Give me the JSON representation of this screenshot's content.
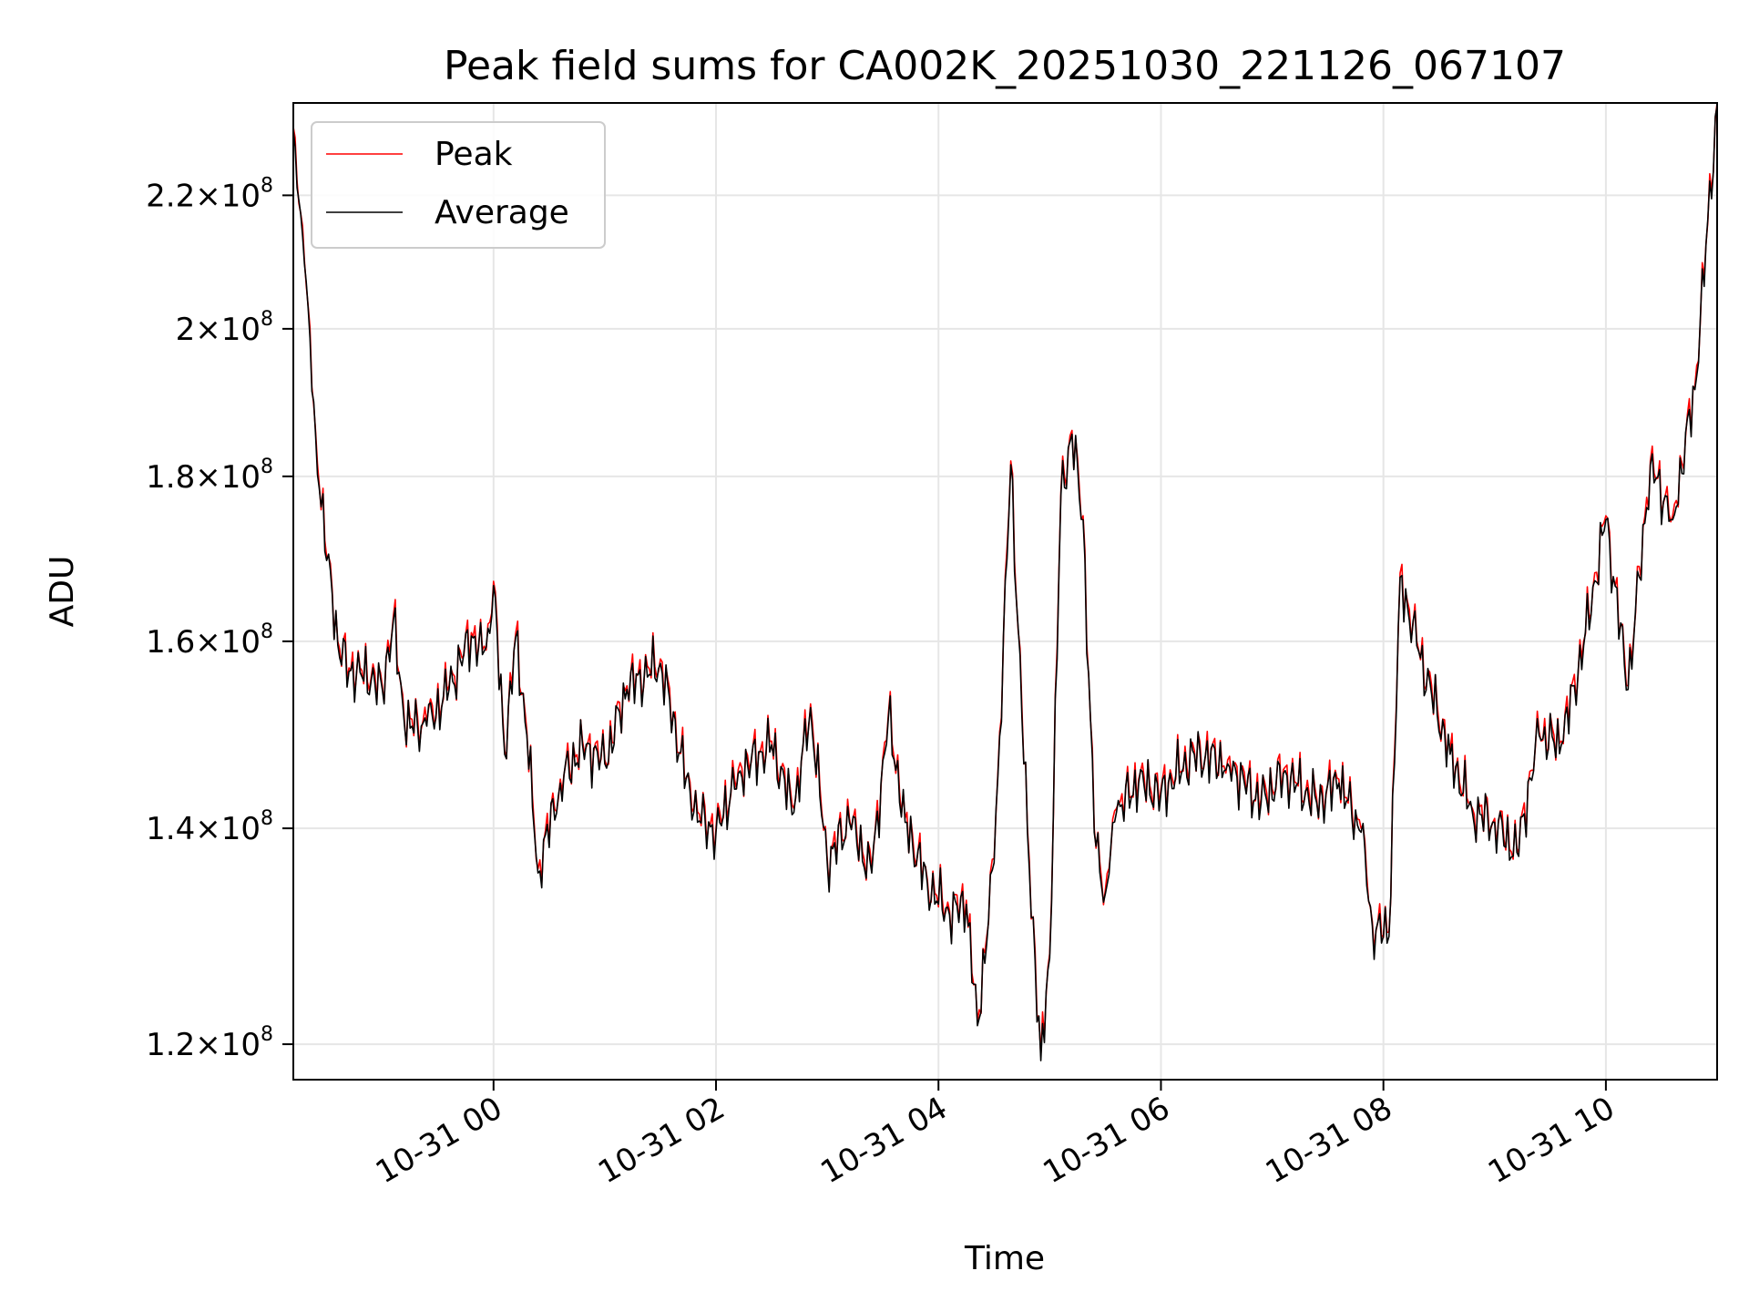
{
  "chart_data": {
    "type": "line",
    "title": "Peak field sums for CA002K_20251030_221126_067107",
    "xlabel": "Time",
    "ylabel": "ADU",
    "yscale": "log",
    "ylim": [
      117000000,
      235000000
    ],
    "xlim_hours": [
      -1.8,
      11.0
    ],
    "grid": true,
    "legend_position": "upper-left",
    "x_ticks": [
      {
        "hour": 0,
        "label": "10-31 00"
      },
      {
        "hour": 2,
        "label": "10-31 02"
      },
      {
        "hour": 4,
        "label": "10-31 04"
      },
      {
        "hour": 6,
        "label": "10-31 06"
      },
      {
        "hour": 8,
        "label": "10-31 08"
      },
      {
        "hour": 10,
        "label": "10-31 10"
      }
    ],
    "y_ticks": [
      {
        "value": 120000000,
        "mantissa": "1.2",
        "exp": "8"
      },
      {
        "value": 140000000,
        "mantissa": "1.4",
        "exp": "8"
      },
      {
        "value": 160000000,
        "mantissa": "1.6",
        "exp": "8"
      },
      {
        "value": 180000000,
        "mantissa": "1.8",
        "exp": "8"
      },
      {
        "value": 200000000,
        "mantissa": "2",
        "exp": "8"
      },
      {
        "value": 220000000,
        "mantissa": "2.2",
        "exp": "8"
      }
    ],
    "series": [
      {
        "name": "Peak",
        "color": "#ff0000",
        "x_hours": [
          -1.8,
          -1.7,
          -1.6,
          -1.5,
          -1.45,
          -1.4,
          -1.3,
          -1.2,
          -1.1,
          -1.0,
          -0.9,
          -0.8,
          -0.6,
          -0.4,
          -0.2,
          -0.1,
          -0.05,
          0.0,
          0.1,
          0.2,
          0.3,
          0.4,
          0.6,
          0.8,
          1.0,
          1.2,
          1.5,
          1.8,
          2.0,
          2.2,
          2.5,
          2.7,
          2.85,
          3.0,
          3.2,
          3.4,
          3.55,
          3.7,
          3.9,
          4.1,
          4.25,
          4.35,
          4.5,
          4.55,
          4.65,
          4.8,
          4.92,
          5.0,
          5.1,
          5.2,
          5.3,
          5.4,
          5.5,
          5.6,
          5.8,
          6.0,
          6.3,
          6.6,
          6.9,
          7.1,
          7.4,
          7.6,
          7.8,
          7.9,
          8.05,
          8.15,
          8.3,
          8.6,
          8.8,
          9.0,
          9.2,
          9.4,
          9.6,
          9.8,
          10.0,
          10.2,
          10.4,
          10.6,
          10.8,
          11.0
        ],
        "values": [
          231000000,
          210000000,
          186000000,
          170000000,
          166000000,
          160000000,
          157000000,
          157000000,
          156000000,
          155000000,
          163000000,
          151000000,
          151000000,
          155000000,
          161000000,
          159000000,
          162000000,
          167000000,
          148000000,
          161000000,
          150000000,
          136000000,
          145000000,
          149000000,
          147000000,
          155000000,
          158000000,
          142000000,
          140000000,
          146000000,
          149000000,
          142000000,
          153000000,
          137000000,
          141000000,
          136000000,
          152000000,
          141000000,
          135000000,
          132000000,
          133000000,
          122000000,
          137000000,
          150000000,
          182000000,
          140000000,
          119000000,
          128000000,
          178000000,
          186000000,
          175000000,
          140000000,
          134000000,
          142000000,
          145000000,
          144000000,
          148000000,
          147000000,
          143000000,
          146000000,
          143000000,
          145000000,
          140000000,
          131000000,
          130000000,
          168000000,
          160000000,
          148000000,
          142000000,
          141000000,
          138000000,
          150000000,
          149000000,
          160000000,
          175000000,
          155000000,
          182000000,
          175000000,
          192000000,
          235000000
        ]
      },
      {
        "name": "Average",
        "color": "#000000",
        "x_hours": [
          -1.8,
          -1.7,
          -1.6,
          -1.5,
          -1.45,
          -1.4,
          -1.3,
          -1.2,
          -1.1,
          -1.0,
          -0.9,
          -0.8,
          -0.6,
          -0.4,
          -0.2,
          -0.1,
          -0.05,
          0.0,
          0.1,
          0.2,
          0.3,
          0.4,
          0.6,
          0.8,
          1.0,
          1.2,
          1.5,
          1.8,
          2.0,
          2.2,
          2.5,
          2.7,
          2.85,
          3.0,
          3.2,
          3.4,
          3.55,
          3.7,
          3.9,
          4.1,
          4.25,
          4.35,
          4.5,
          4.55,
          4.65,
          4.8,
          4.92,
          5.0,
          5.1,
          5.2,
          5.3,
          5.4,
          5.5,
          5.6,
          5.8,
          6.0,
          6.3,
          6.6,
          6.9,
          7.1,
          7.4,
          7.6,
          7.8,
          7.9,
          8.05,
          8.15,
          8.3,
          8.6,
          8.8,
          9.0,
          9.2,
          9.4,
          9.6,
          9.8,
          10.0,
          10.2,
          10.4,
          10.6,
          10.8,
          11.0
        ],
        "values": [
          230500000,
          209500000,
          185500000,
          169500000,
          165500000,
          159600000,
          156600000,
          156500000,
          155600000,
          154600000,
          162500000,
          150600000,
          150600000,
          154600000,
          160600000,
          158500000,
          161500000,
          166500000,
          147600000,
          160500000,
          149600000,
          135600000,
          144600000,
          148600000,
          146600000,
          154600000,
          157500000,
          141600000,
          139600000,
          145600000,
          148600000,
          141600000,
          152600000,
          136600000,
          140600000,
          135600000,
          151600000,
          140600000,
          134600000,
          131600000,
          132600000,
          121600000,
          136600000,
          149500000,
          181500000,
          139600000,
          118600000,
          127600000,
          177500000,
          185500000,
          174500000,
          139600000,
          133600000,
          141600000,
          144600000,
          143600000,
          147600000,
          146600000,
          142600000,
          145600000,
          142600000,
          144600000,
          139600000,
          130600000,
          129600000,
          167500000,
          159500000,
          147600000,
          141600000,
          140600000,
          137600000,
          149600000,
          148600000,
          159500000,
          174500000,
          154600000,
          181500000,
          174500000,
          191500000,
          234500000
        ]
      }
    ]
  }
}
